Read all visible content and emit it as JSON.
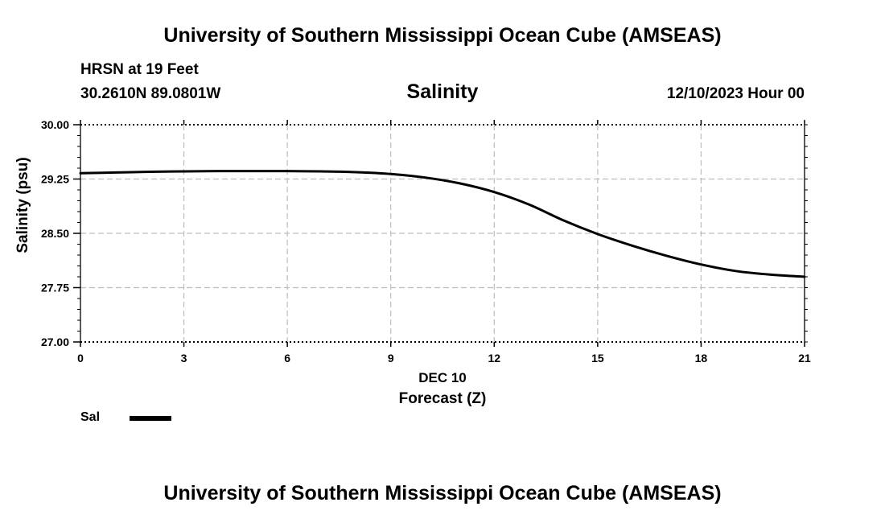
{
  "header": {
    "title": "University of Southern Mississippi Ocean Cube (AMSEAS)",
    "station": "HRSN at 19 Feet",
    "coords": "30.2610N  89.0801W",
    "subtitle": "Salinity",
    "datetime": "12/10/2023 Hour 00"
  },
  "footer": {
    "title": "University of Southern Mississippi Ocean Cube (AMSEAS)"
  },
  "legend": {
    "label": "Sal",
    "color": "#000000"
  },
  "chart_data": {
    "type": "line",
    "title": "Salinity",
    "xlabel": "Forecast (Z)",
    "xlabel_date": "DEC 10",
    "ylabel": "Salinity (psu)",
    "xlim": [
      0,
      21
    ],
    "ylim": [
      27.0,
      30.0
    ],
    "xticks": [
      0,
      3,
      6,
      9,
      12,
      15,
      18,
      21
    ],
    "xtick_labels": [
      "0",
      "3",
      "6",
      "9",
      "12",
      "15",
      "18",
      "21"
    ],
    "yticks": [
      27.0,
      27.75,
      28.5,
      29.25,
      30.0
    ],
    "ytick_labels": [
      "27.00",
      "27.75",
      "28.50",
      "29.25",
      "30.00"
    ],
    "grid": true,
    "legend_position": "bottom-left",
    "series": [
      {
        "name": "Sal",
        "color": "#000000",
        "x": [
          0,
          1,
          2,
          3,
          4,
          5,
          6,
          7,
          8,
          9,
          10,
          11,
          12,
          13,
          14,
          15,
          16,
          17,
          18,
          19,
          20,
          21
        ],
        "y": [
          29.33,
          29.34,
          29.35,
          29.355,
          29.36,
          29.36,
          29.36,
          29.355,
          29.345,
          29.32,
          29.27,
          29.19,
          29.07,
          28.9,
          28.68,
          28.49,
          28.33,
          28.19,
          28.07,
          27.98,
          27.93,
          27.9
        ]
      }
    ]
  }
}
